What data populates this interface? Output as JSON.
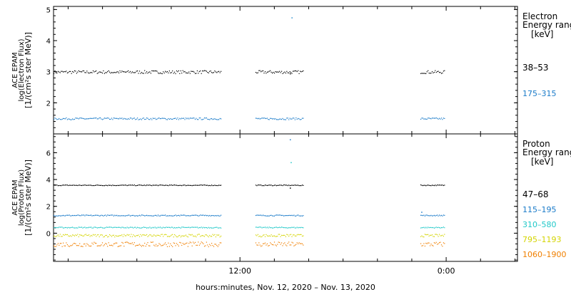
{
  "xlabel": "hours:minutes, Nov. 12, 2020 – Nov. 13, 2020",
  "x_ticks": [
    {
      "label": "12:00",
      "hours": 12
    },
    {
      "label": "0:00",
      "hours": 24
    }
  ],
  "chart_data": [
    {
      "type": "scatter",
      "instrument": "ACE EPAM",
      "ylabel_line1": "ACE EPAM",
      "ylabel_line2": "log(Electron Flux)",
      "ylabel_line3": "[1/(cm²s ster MeV)]",
      "ylim": [
        1.0,
        5.1
      ],
      "yticks": [
        2,
        3,
        4,
        5
      ],
      "xlim_hours": [
        1.15,
        28.15
      ],
      "legend_title_line1": "Electron",
      "legend_title_line2": "Energy range",
      "legend_unit": "[keV]",
      "data_segments_hours": [
        [
          1.15,
          10.9
        ],
        [
          12.9,
          15.7
        ],
        [
          22.5,
          23.9
        ]
      ],
      "outliers": [
        {
          "hours": 15.0,
          "value": 4.75,
          "color": "#2a8fcf"
        },
        {
          "hours": 14.9,
          "value": 2.95,
          "color": "#000000"
        }
      ],
      "series": [
        {
          "name": "38–53",
          "color": "#000000",
          "value": 3.0,
          "spread": 0.05
        },
        {
          "name": "175–315",
          "color": "#1a7bc9",
          "value": 1.5,
          "spread": 0.03
        }
      ]
    },
    {
      "type": "scatter",
      "instrument": "ACE EPAM",
      "ylabel_line1": "ACE EPAM",
      "ylabel_line2": "log(Proton Flux)",
      "ylabel_line3": "[1/(cm²s ster MeV)]",
      "ylim": [
        -2.1,
        7.4
      ],
      "yticks": [
        0,
        2,
        4,
        6
      ],
      "xlim_hours": [
        1.15,
        28.15
      ],
      "legend_title_line1": "Proton",
      "legend_title_line2": "Energy range",
      "legend_unit": "[keV]",
      "data_segments_hours": [
        [
          1.15,
          10.9
        ],
        [
          12.9,
          15.7
        ],
        [
          22.5,
          23.9
        ]
      ],
      "outliers": [
        {
          "hours": 14.9,
          "value": 7.0,
          "color": "#1a7bc9"
        },
        {
          "hours": 14.95,
          "value": 5.3,
          "color": "#20c8c8"
        },
        {
          "hours": 14.9,
          "value": 3.4,
          "color": "#000000"
        },
        {
          "hours": 22.55,
          "value": 1.6,
          "color": "#1a7bc9"
        }
      ],
      "series": [
        {
          "name": "47–68",
          "color": "#000000",
          "value": 3.6,
          "spread": 0.03
        },
        {
          "name": "115–195",
          "color": "#1a7bc9",
          "value": 1.35,
          "spread": 0.04
        },
        {
          "name": "310–580",
          "color": "#20c8c8",
          "value": 0.45,
          "spread": 0.04
        },
        {
          "name": "795–1193",
          "color": "#d4d400",
          "value": -0.15,
          "spread": 0.1
        },
        {
          "name": "1060–1900",
          "color": "#f07f00",
          "value": -0.8,
          "spread": 0.18
        }
      ]
    }
  ]
}
